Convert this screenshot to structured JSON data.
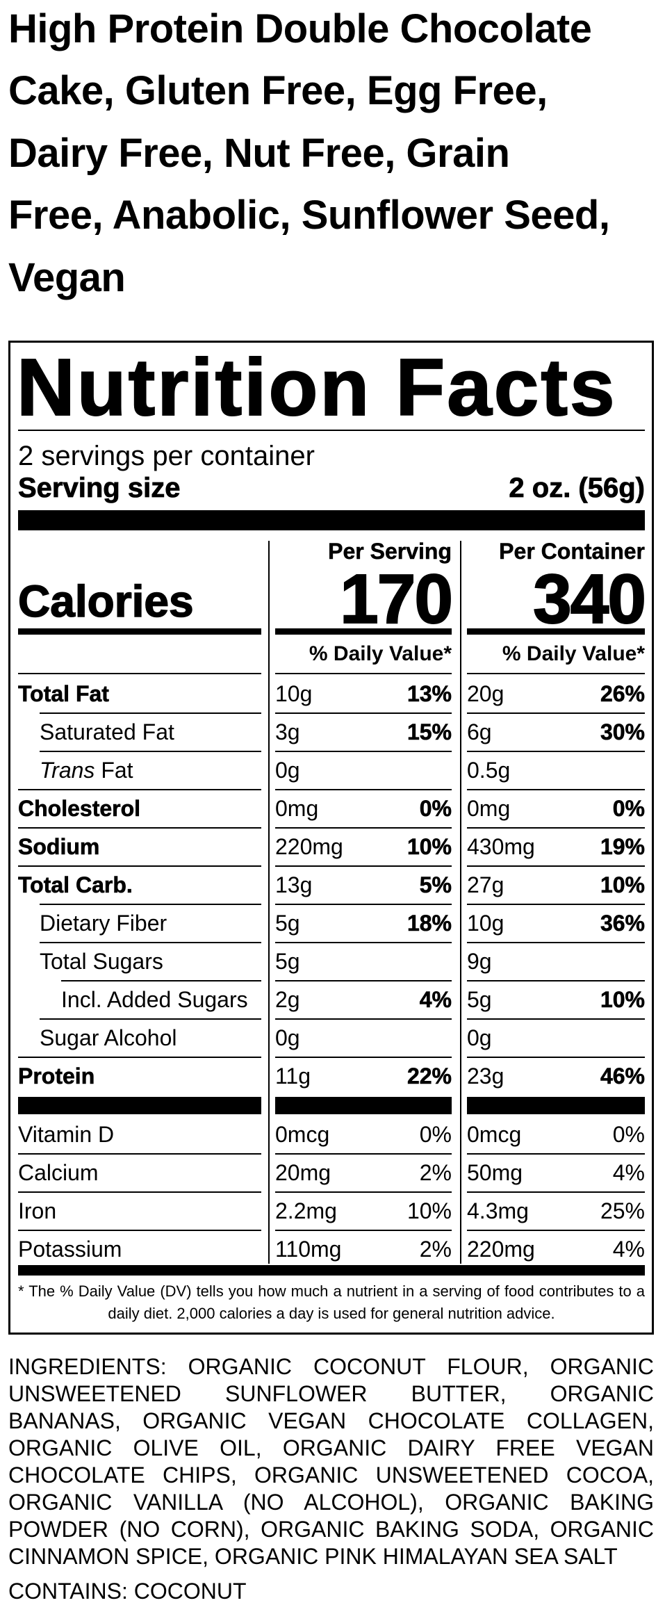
{
  "title_lines": [
    "High Protein Double Chocolate",
    "Cake, Gluten Free, Egg Free,",
    "Dairy Free, Nut Free, Grain",
    "Free, Anabolic, Sunflower Seed,",
    "Vegan"
  ],
  "nutrition_facts": {
    "heading": "Nutrition Facts",
    "servings": "2 servings per container",
    "serving_size_label": "Serving size",
    "serving_size": "2 oz. (56g)",
    "columns": [
      "Per Serving",
      "Per Container"
    ],
    "calories_label": "Calories",
    "calories": [
      170,
      340
    ],
    "dv_header": "% Daily Value*",
    "rows": [
      {
        "label": "Total Fat",
        "bold": true,
        "values": [
          [
            "10g",
            "13%"
          ],
          [
            "20g",
            "26%"
          ]
        ]
      },
      {
        "label": "Saturated Fat",
        "indent": 1,
        "values": [
          [
            "3g",
            "15%"
          ],
          [
            "6g",
            "30%"
          ]
        ]
      },
      {
        "label_italic": "Trans",
        "label": "Fat",
        "indent": 1,
        "values": [
          [
            "0g"
          ],
          [
            "0.5g"
          ]
        ]
      },
      {
        "label": "Cholesterol",
        "bold": true,
        "values": [
          [
            "0mg",
            "0%"
          ],
          [
            "0mg",
            "0%"
          ]
        ]
      },
      {
        "label": "Sodium",
        "bold": true,
        "values": [
          [
            "220mg",
            "10%"
          ],
          [
            "430mg",
            "19%"
          ]
        ]
      },
      {
        "label": "Total Carb.",
        "bold": true,
        "values": [
          [
            "13g",
            "5%"
          ],
          [
            "27g",
            "10%"
          ]
        ]
      },
      {
        "label": "Dietary Fiber",
        "indent": 1,
        "values": [
          [
            "5g",
            "18%"
          ],
          [
            "10g",
            "36%"
          ]
        ]
      },
      {
        "label": "Total Sugars",
        "indent": 1,
        "values": [
          [
            "5g"
          ],
          [
            "9g"
          ]
        ]
      },
      {
        "label": "Incl. Added Sugars",
        "indent": 2,
        "values": [
          [
            "2g",
            "4%"
          ],
          [
            "5g",
            "10%"
          ]
        ]
      },
      {
        "label": "Sugar Alcohol",
        "indent": 1,
        "values": [
          [
            "0g"
          ],
          [
            "0g"
          ]
        ]
      },
      {
        "label": "Protein",
        "bold": true,
        "values": [
          [
            "11g",
            "22%"
          ],
          [
            "23g",
            "46%"
          ]
        ]
      }
    ],
    "vitamins": [
      {
        "label": "Vitamin D",
        "values": [
          [
            "0mcg",
            "0%"
          ],
          [
            "0mcg",
            "0%"
          ]
        ]
      },
      {
        "label": "Calcium",
        "values": [
          [
            "20mg",
            "2%"
          ],
          [
            "50mg",
            "4%"
          ]
        ]
      },
      {
        "label": "Iron",
        "values": [
          [
            "2.2mg",
            "10%"
          ],
          [
            "4.3mg",
            "25%"
          ]
        ]
      },
      {
        "label": "Potassium",
        "values": [
          [
            "110mg",
            "2%"
          ],
          [
            "220mg",
            "4%"
          ]
        ]
      }
    ],
    "footnote": "* The % Daily Value (DV) tells you how much a nutrient in a serving of food contributes to a daily diet. 2,000 calories a day is used for general nutrition advice."
  },
  "ingredients": "INGREDIENTS: ORGANIC COCONUT FLOUR, ORGANIC UNSWEETENED SUNFLOWER BUTTER, ORGANIC BANANAS, ORGANIC VEGAN CHOCOLATE COLLAGEN, ORGANIC OLIVE OIL, ORGANIC DAIRY FREE VEGAN CHOCOLATE CHIPS, ORGANIC UNSWEETENED COCOA, ORGANIC VANILLA (NO ALCOHOL), ORGANIC BAKING POWDER (NO CORN), ORGANIC BAKING SODA, ORGANIC CINNAMON SPICE, ORGANIC PINK HIMALAYAN SEA SALT",
  "contains": "CONTAINS: COCONUT"
}
